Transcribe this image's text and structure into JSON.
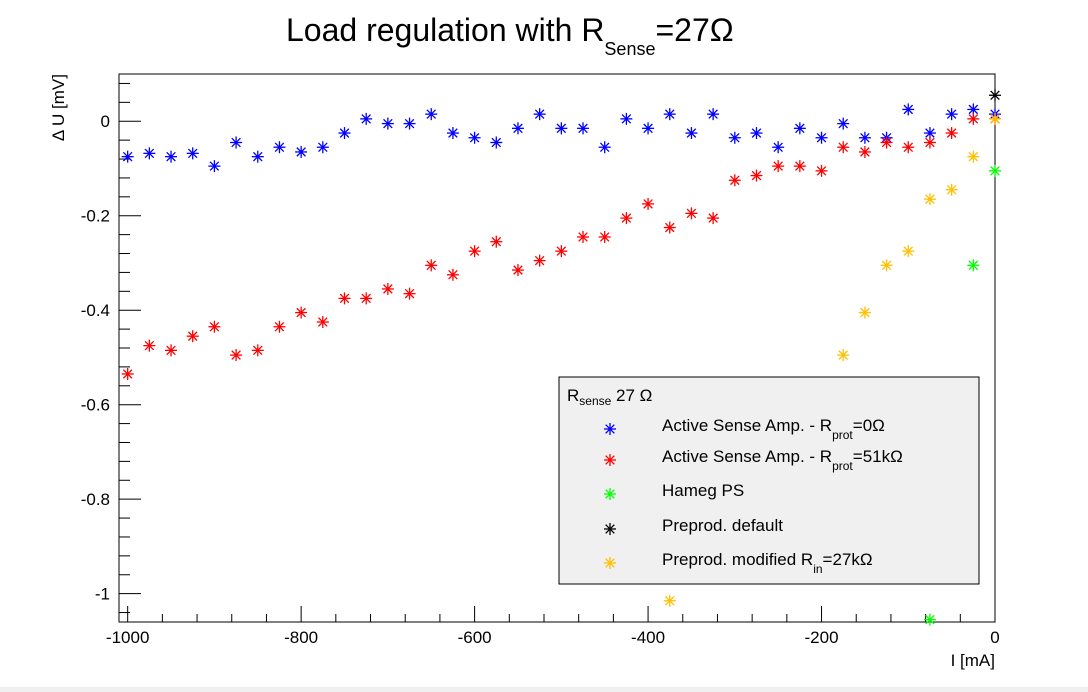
{
  "chart_data": {
    "type": "scatter",
    "title": {
      "main": "Load regulation with R",
      "sub": "Sense",
      "tail": "=27Ω"
    },
    "xlabel": "I [mA]",
    "ylabel": "Δ U [mV]",
    "xlim": [
      -1010,
      0
    ],
    "ylim": [
      -1.06,
      0.1
    ],
    "xticks": [
      -1000,
      -800,
      -600,
      -400,
      -200,
      0
    ],
    "xtick_labels": [
      "-1000",
      "-800",
      "-600",
      "-400",
      "-200",
      "0"
    ],
    "yticks": [
      0,
      -0.2,
      -0.4,
      -0.6,
      -0.8,
      -1
    ],
    "ytick_labels": [
      "0",
      "-0.2",
      "-0.4",
      "-0.6",
      "-0.8",
      "-1"
    ],
    "grid": false,
    "legend": {
      "placement": "bottom-right",
      "header": {
        "main": "R",
        "sub": "sense",
        "tail": " 27 Ω"
      },
      "entries": [
        {
          "main": "Active Sense Amp. - R",
          "sub": "prot",
          "tail": "=0Ω"
        },
        {
          "main": "Active Sense Amp. - R",
          "sub": "prot",
          "tail": "=51kΩ"
        },
        {
          "main": "Hameg PS",
          "sub": "",
          "tail": ""
        },
        {
          "main": "Preprod. default",
          "sub": "",
          "tail": ""
        },
        {
          "main": "Preprod. modified R",
          "sub": "in",
          "tail": "=27kΩ"
        }
      ]
    },
    "series": [
      {
        "color": "#0000ff",
        "x": [
          -1000,
          -975,
          -950,
          -925,
          -900,
          -875,
          -850,
          -825,
          -800,
          -775,
          -750,
          -725,
          -700,
          -675,
          -650,
          -625,
          -600,
          -575,
          -550,
          -525,
          -500,
          -475,
          -450,
          -425,
          -400,
          -375,
          -350,
          -325,
          -300,
          -275,
          -250,
          -225,
          -200,
          -175,
          -150,
          -125,
          -100,
          -75,
          -50,
          -25,
          0
        ],
        "y": [
          -0.075,
          -0.068,
          -0.075,
          -0.068,
          -0.095,
          -0.045,
          -0.075,
          -0.055,
          -0.065,
          -0.055,
          -0.025,
          0.005,
          -0.005,
          -0.005,
          0.015,
          -0.025,
          -0.035,
          -0.045,
          -0.015,
          0.015,
          -0.015,
          -0.015,
          -0.055,
          0.005,
          -0.015,
          0.015,
          -0.025,
          0.015,
          -0.035,
          -0.025,
          -0.055,
          -0.015,
          -0.035,
          -0.005,
          -0.035,
          -0.035,
          0.025,
          -0.025,
          0.015,
          0.025,
          0.015
        ]
      },
      {
        "color": "#ff0000",
        "x": [
          -1000,
          -975,
          -950,
          -925,
          -900,
          -875,
          -850,
          -825,
          -800,
          -775,
          -750,
          -725,
          -700,
          -675,
          -650,
          -625,
          -600,
          -575,
          -550,
          -525,
          -500,
          -475,
          -450,
          -425,
          -400,
          -375,
          -350,
          -325,
          -300,
          -275,
          -250,
          -225,
          -200,
          -175,
          -150,
          -125,
          -100,
          -75,
          -50,
          -25,
          0
        ],
        "y": [
          -0.535,
          -0.475,
          -0.485,
          -0.455,
          -0.435,
          -0.495,
          -0.485,
          -0.435,
          -0.405,
          -0.425,
          -0.375,
          -0.375,
          -0.355,
          -0.365,
          -0.305,
          -0.325,
          -0.275,
          -0.255,
          -0.315,
          -0.295,
          -0.275,
          -0.245,
          -0.245,
          -0.205,
          -0.175,
          -0.225,
          -0.195,
          -0.205,
          -0.125,
          -0.115,
          -0.095,
          -0.095,
          -0.105,
          -0.055,
          -0.065,
          -0.045,
          -0.055,
          -0.045,
          -0.025,
          0.005,
          0.005
        ]
      },
      {
        "color": "#00ff00",
        "x": [
          -75,
          -25,
          0
        ],
        "y": [
          -1.055,
          -0.305,
          -0.105
        ]
      },
      {
        "color": "#000000",
        "x": [
          0
        ],
        "y": [
          0.055
        ]
      },
      {
        "color": "#ffc000",
        "x": [
          -375,
          -175,
          -150,
          -125,
          -100,
          -75,
          -50,
          -25,
          0
        ],
        "y": [
          -1.015,
          -0.495,
          -0.405,
          -0.305,
          -0.275,
          -0.165,
          -0.145,
          -0.075,
          0.005
        ]
      }
    ]
  }
}
